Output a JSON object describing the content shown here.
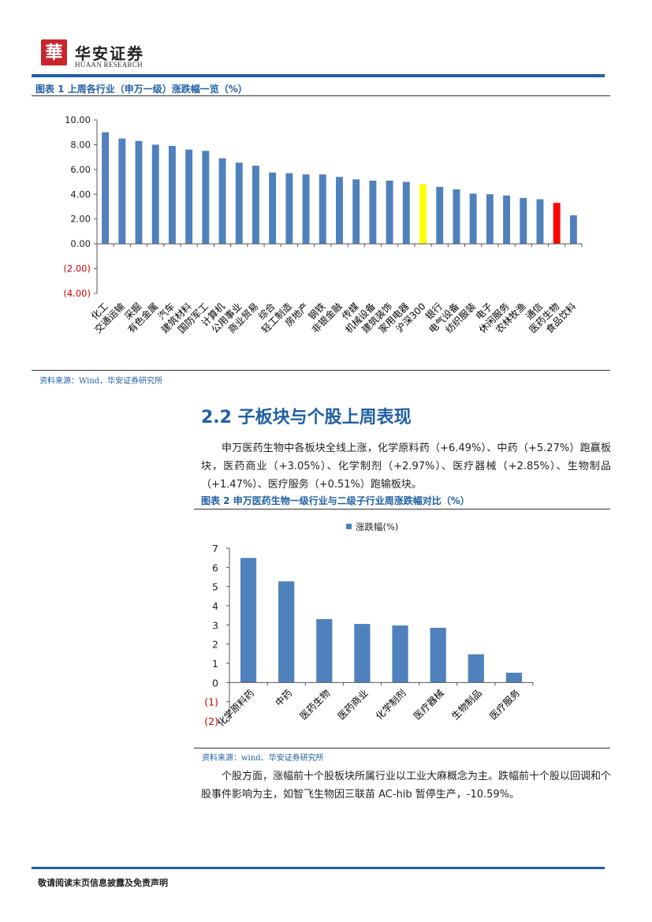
{
  "header": {
    "logo_glyph": "華",
    "company_cn": "华安证券",
    "company_en": "HUAAN RESEARCH",
    "brand_color": "#c9252c",
    "accent_color": "#1f5fa6"
  },
  "figure1": {
    "title": "图表 1 上周各行业（申万一级）涨跌幅一览（%）",
    "source": "资料来源：Wind，华安证券研究所"
  },
  "section": {
    "title": "2.2 子板块与个股上周表现",
    "paragraph1": "申万医药生物中各板块全线上涨，化学原料药（+6.49%）、中药（+5.27%）跑赢板块，医药商业（+3.05%）、化学制剂（+2.97%）、医疗器械（+2.85%）、生物制品（+1.47%）、医疗服务（+0.51%）跑输板块。",
    "paragraph2": "个股方面，涨幅前十个股板块所属行业以工业大麻概念为主。跌幅前十个股以回调和个股事件影响为主，如智飞生物因三联苗 AC-hib 暂停生产，-10.59%。"
  },
  "figure2": {
    "title": "图表 2 申万医药生物一级行业与二级子行业周涨跌幅对比（%）",
    "source": "资料来源：wind、华安证券研究所"
  },
  "footer": {
    "disclaimer": "敬请阅读末页信息披露及免责声明"
  },
  "chart_data": [
    {
      "type": "bar",
      "categories": [
        "化工",
        "交通运输",
        "采掘",
        "有色金属",
        "汽车",
        "建筑材料",
        "国防军工",
        "计算机",
        "公用事业",
        "商业贸易",
        "综合",
        "轻工制造",
        "房地产",
        "钢铁",
        "非银金融",
        "传媒",
        "机械设备",
        "建筑装饰",
        "家用电器",
        "沪深300",
        "银行",
        "电气设备",
        "纺织服装",
        "电子",
        "休闲服务",
        "农林牧渔",
        "通信",
        "医药生物",
        "食品饮料"
      ],
      "values": [
        9.0,
        8.5,
        8.3,
        8.0,
        7.9,
        7.6,
        7.5,
        6.9,
        6.55,
        6.3,
        5.75,
        5.7,
        5.6,
        5.6,
        5.4,
        5.2,
        5.1,
        5.1,
        5.0,
        4.8,
        4.6,
        4.4,
        4.05,
        4.0,
        3.9,
        3.7,
        3.6,
        3.3,
        2.3
      ],
      "highlight": {
        "沪深300": "#ffff00",
        "医药生物": "#ff0000"
      },
      "bar_color": "#4f81bd",
      "ylim": [
        -4,
        10
      ],
      "yticks": [
        "10.00",
        "8.00",
        "6.00",
        "4.00",
        "2.00",
        "0.00",
        "(2.00)",
        "(4.00)"
      ],
      "ytick_values": [
        10,
        8,
        6,
        4,
        2,
        0,
        -2,
        -4
      ],
      "negative_tick_color": "#cc0000",
      "grid": false
    },
    {
      "type": "bar",
      "categories": [
        "化学原料药",
        "中药",
        "医药生物",
        "医药商业",
        "化学制剂",
        "医疗器械",
        "生物制品",
        "医疗服务"
      ],
      "series": [
        {
          "name": "涨跌幅(%)",
          "values": [
            6.49,
            5.27,
            3.3,
            3.05,
            2.97,
            2.85,
            1.47,
            0.51
          ]
        }
      ],
      "bar_color": "#4f81bd",
      "ylim": [
        -2,
        7
      ],
      "yticks": [
        "7",
        "6",
        "5",
        "4",
        "3",
        "2",
        "1",
        "0",
        "(1)",
        "(2)"
      ],
      "ytick_values": [
        7,
        6,
        5,
        4,
        3,
        2,
        1,
        0,
        -1,
        -2
      ],
      "negative_tick_color": "#cc0000",
      "legend_position": "top",
      "grid": false
    }
  ]
}
